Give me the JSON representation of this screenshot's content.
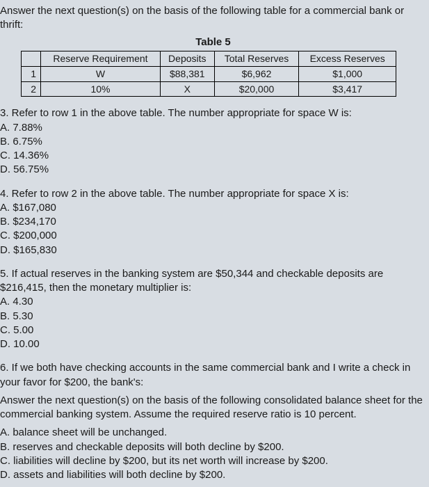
{
  "intro": "Answer the next question(s) on the basis of the following table for a commercial bank or thrift:",
  "table": {
    "title": "Table 5",
    "headers": [
      "",
      "Reserve Requirement",
      "Deposits",
      "Total Reserves",
      "Excess Reserves"
    ],
    "rows": [
      [
        "1",
        "W",
        "$88,381",
        "$6,962",
        "$1,000"
      ],
      [
        "2",
        "10%",
        "X",
        "$20,000",
        "$3,417"
      ]
    ]
  },
  "q3": {
    "stem": "3. Refer to row 1 in the above table. The number appropriate for space W is:",
    "a": "A. 7.88%",
    "b": "B. 6.75%",
    "c": "C. 14.36%",
    "d": "D. 56.75%"
  },
  "q4": {
    "stem": "4. Refer to row 2 in the above table. The number appropriate for space X is:",
    "a": "A. $167,080",
    "b": "B. $234,170",
    "c": "C. $200,000",
    "d": "D. $165,830"
  },
  "q5": {
    "stem": "5. If actual reserves in the banking system are $50,344 and checkable deposits are $216,415, then the monetary multiplier is:",
    "a": "A. 4.30",
    "b": "B. 5.30",
    "c": "C. 5.00",
    "d": "D. 10.00"
  },
  "q6": {
    "stem": "6. If we both have checking accounts in the same commercial bank and I write a check in your favor for $200, the bank's:",
    "interp": "Answer the next question(s) on the basis of the following consolidated balance sheet for the commercial banking system. Assume the required reserve ratio is 10 percent.",
    "a": "A. balance sheet will be unchanged.",
    "b": "B. reserves and checkable deposits will both decline by $200.",
    "c": "C. liabilities will decline by $200, but its net worth will increase by $200.",
    "d": "D. assets and liabilities will both decline by $200."
  }
}
